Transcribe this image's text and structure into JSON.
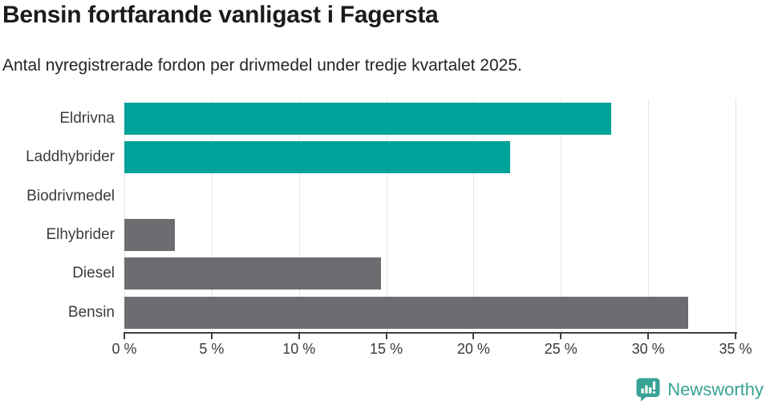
{
  "header": {
    "title": "Bensin fortfarande vanligast i Fagersta",
    "subtitle": "Antal nyregistrerade fordon per drivmedel under tredje kvartalet 2025."
  },
  "chart_data": {
    "type": "bar",
    "orientation": "horizontal",
    "title": "Bensin fortfarande vanligast i Fagersta",
    "subtitle": "Antal nyregistrerade fordon per drivmedel under tredje kvartalet 2025.",
    "categories": [
      "Eldrivna",
      "Laddhybrider",
      "Biodrivmedel",
      "Elhybrider",
      "Diesel",
      "Bensin"
    ],
    "values": [
      27.9,
      22.1,
      0,
      2.9,
      14.7,
      32.3
    ],
    "unit": "%",
    "xlim": [
      0,
      35
    ],
    "x_tick_values": [
      0,
      5,
      10,
      15,
      20,
      25,
      30,
      35
    ],
    "x_tick_labels": [
      "0 %",
      "5 %",
      "10 %",
      "15 %",
      "20 %",
      "25 %",
      "30 %",
      "35 %"
    ],
    "grid": true,
    "legend": "none",
    "bar_colors": [
      "#00a39a",
      "#00a39a",
      "#00a39a",
      "#6d6c71",
      "#6d6c71",
      "#6d6c71"
    ],
    "accent_color": "#00a39a",
    "neutral_color": "#6d6c71",
    "gridline_color": "#e4e4e4",
    "axis_color": "#3f3f3f"
  },
  "footer": {
    "brand": "Newsworthy",
    "logo_color": "#38a394"
  }
}
